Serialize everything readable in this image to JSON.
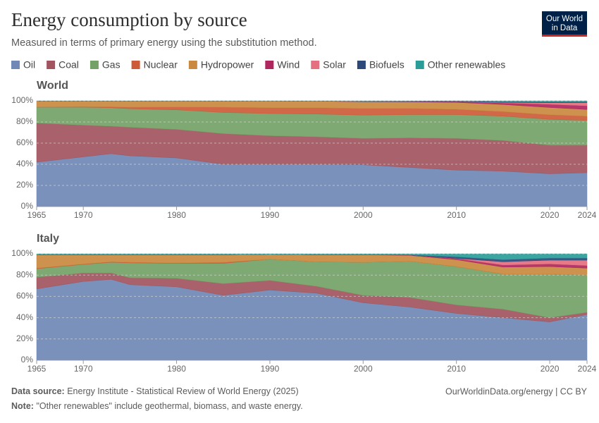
{
  "header": {
    "title": "Energy consumption by source",
    "subtitle": "Measured in terms of primary energy using the substitution method.",
    "logo": [
      "Our World",
      "in Data"
    ]
  },
  "footer": {
    "source_label": "Data source:",
    "source": "Energy Institute - Statistical Review of World Energy (2025)",
    "link": "OurWorldinData.org/energy | CC BY",
    "note_label": "Note:",
    "note": "\"Other renewables\" include geothermal, biomass, and waste energy."
  },
  "chart_data": [
    {
      "type": "area",
      "stacked": true,
      "title": "World",
      "grid": true,
      "x": [
        1965,
        1970,
        1973,
        1975,
        1980,
        1985,
        1990,
        1995,
        2000,
        2005,
        2010,
        2015,
        2020,
        2024
      ],
      "xlim": [
        1965,
        2024
      ],
      "xticks": [
        1965,
        1970,
        1980,
        1990,
        2000,
        2010,
        2020,
        2024
      ],
      "ylim": [
        0,
        100
      ],
      "yticks": [
        {
          "value": 0,
          "label": "0%"
        },
        {
          "value": 20,
          "label": "20%"
        },
        {
          "value": 40,
          "label": "40%"
        },
        {
          "value": 60,
          "label": "60%"
        },
        {
          "value": 80,
          "label": "80%"
        },
        {
          "value": 100,
          "label": "100%"
        }
      ],
      "series": [
        {
          "name": "Oil",
          "color": "#6f88b5",
          "values": [
            42,
            47,
            50,
            48,
            46,
            40,
            40,
            40,
            39.5,
            37,
            34.5,
            33.5,
            31,
            32
          ]
        },
        {
          "name": "Coal",
          "color": "#a2555e",
          "values": [
            37,
            30,
            26,
            27,
            27,
            29,
            27,
            26,
            25,
            28,
            30,
            29,
            27,
            26
          ]
        },
        {
          "name": "Gas",
          "color": "#74a266",
          "values": [
            15,
            17,
            17.5,
            17.5,
            18.5,
            20,
            21,
            21.5,
            22,
            22,
            22.5,
            23,
            24.5,
            23.5
          ]
        },
        {
          "name": "Nuclear",
          "color": "#cd5b38",
          "values": [
            0.2,
            0.4,
            0.8,
            1.5,
            2.7,
            5,
            5.5,
            6,
            6.3,
            5.8,
            5,
            4.3,
            4.3,
            4
          ]
        },
        {
          "name": "Hydropower",
          "color": "#c98a3f",
          "values": [
            5.5,
            5.3,
            5.4,
            5.7,
            5.5,
            5.7,
            6,
            6.2,
            6.3,
            6.2,
            6.5,
            6.7,
            6.9,
            6.3
          ]
        },
        {
          "name": "Wind",
          "color": "#b0265e",
          "values": [
            0,
            0,
            0,
            0,
            0,
            0,
            0,
            0,
            0.1,
            0.2,
            0.7,
            1.5,
            3,
            3.5
          ]
        },
        {
          "name": "Solar",
          "color": "#e56f7f",
          "values": [
            0,
            0,
            0,
            0,
            0,
            0,
            0,
            0,
            0,
            0,
            0.1,
            0.5,
            1.5,
            3
          ]
        },
        {
          "name": "Biofuels",
          "color": "#2b4a7a",
          "values": [
            0,
            0,
            0,
            0,
            0,
            0,
            0.1,
            0.1,
            0.2,
            0.3,
            0.5,
            0.6,
            0.7,
            0.7
          ]
        },
        {
          "name": "Other renewables",
          "color": "#2a9d99",
          "values": [
            0.3,
            0.3,
            0.3,
            0.3,
            0.3,
            0.3,
            0.4,
            0.2,
            0.6,
            0.5,
            0.2,
            0.9,
            1.1,
            1
          ]
        }
      ]
    },
    {
      "type": "area",
      "stacked": true,
      "title": "Italy",
      "grid": true,
      "x": [
        1965,
        1970,
        1973,
        1975,
        1980,
        1985,
        1990,
        1995,
        2000,
        2005,
        2010,
        2015,
        2020,
        2024
      ],
      "xlim": [
        1965,
        2024
      ],
      "xticks": [
        1965,
        1970,
        1980,
        1990,
        2000,
        2010,
        2020,
        2024
      ],
      "ylim": [
        0,
        100
      ],
      "yticks": [
        {
          "value": 0,
          "label": "0%"
        },
        {
          "value": 20,
          "label": "20%"
        },
        {
          "value": 40,
          "label": "40%"
        },
        {
          "value": 60,
          "label": "60%"
        },
        {
          "value": 80,
          "label": "80%"
        },
        {
          "value": 100,
          "label": "100%"
        }
      ],
      "series": [
        {
          "name": "Oil",
          "color": "#6f88b5",
          "values": [
            67,
            74,
            76,
            71,
            69,
            61,
            66,
            63,
            54,
            50,
            44,
            40,
            36,
            43
          ]
        },
        {
          "name": "Coal",
          "color": "#a2555e",
          "values": [
            11,
            8,
            6,
            6.5,
            8,
            11,
            9,
            6.5,
            7,
            9,
            8,
            8,
            4,
            2
          ]
        },
        {
          "name": "Gas",
          "color": "#74a266",
          "values": [
            8,
            8,
            10,
            14,
            14,
            19,
            20,
            23,
            31,
            34,
            36,
            33,
            41,
            35
          ]
        },
        {
          "name": "Nuclear",
          "color": "#cd5b38",
          "values": [
            0.5,
            0.4,
            0.5,
            0.5,
            0.4,
            1,
            0,
            0,
            0,
            0,
            0,
            0,
            0,
            0
          ]
        },
        {
          "name": "Hydropower",
          "color": "#c98a3f",
          "values": [
            12.5,
            8.6,
            6.5,
            7,
            7.6,
            7,
            4.5,
            6.5,
            7,
            5.5,
            6.5,
            6.5,
            7,
            6.5
          ]
        },
        {
          "name": "Wind",
          "color": "#b0265e",
          "values": [
            0,
            0,
            0,
            0,
            0,
            0,
            0,
            0,
            0,
            0.3,
            1,
            2,
            2.5,
            2.5
          ]
        },
        {
          "name": "Solar",
          "color": "#e56f7f",
          "values": [
            0,
            0,
            0,
            0,
            0,
            0,
            0,
            0,
            0,
            0,
            0.2,
            3,
            3.5,
            5
          ]
        },
        {
          "name": "Biofuels",
          "color": "#2b4a7a",
          "values": [
            0,
            0,
            0,
            0,
            0,
            0,
            0,
            0,
            0,
            0.2,
            1.5,
            2,
            2,
            2
          ]
        },
        {
          "name": "Other renewables",
          "color": "#2a9d99",
          "values": [
            1,
            1,
            1,
            1,
            1,
            1,
            0.5,
            1,
            1,
            1,
            2.8,
            5.5,
            4,
            4
          ]
        }
      ]
    }
  ]
}
